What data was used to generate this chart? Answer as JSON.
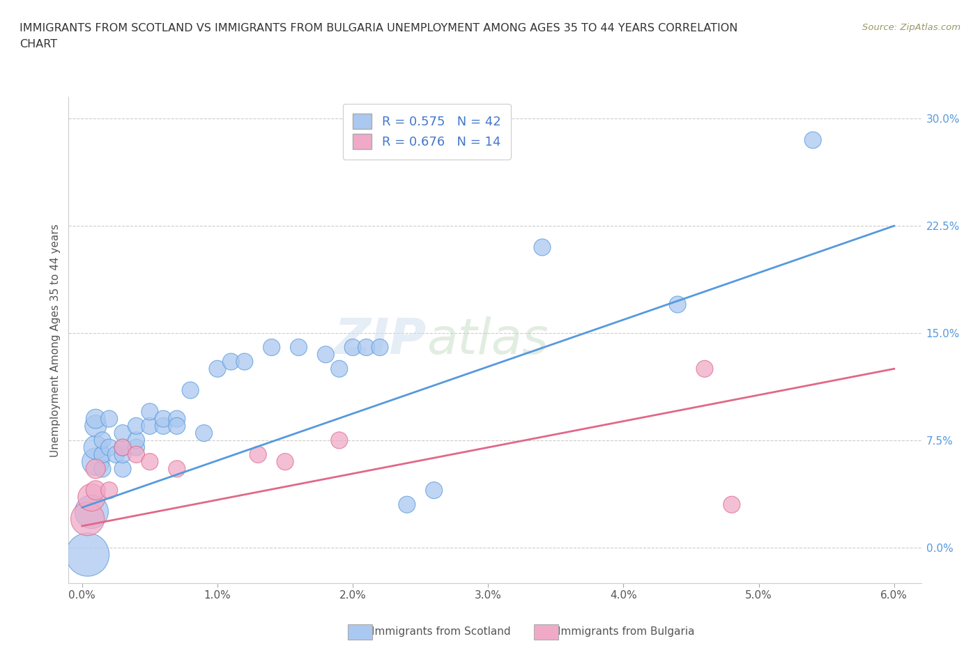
{
  "title_line1": "IMMIGRANTS FROM SCOTLAND VS IMMIGRANTS FROM BULGARIA UNEMPLOYMENT AMONG AGES 35 TO 44 YEARS CORRELATION",
  "title_line2": "CHART",
  "source": "Source: ZipAtlas.com",
  "ylabel": "Unemployment Among Ages 35 to 44 years",
  "xlim": [
    -0.001,
    0.062
  ],
  "ylim": [
    -0.025,
    0.315
  ],
  "x_ticks": [
    0.0,
    0.01,
    0.02,
    0.03,
    0.04,
    0.05,
    0.06
  ],
  "x_tick_labels": [
    "0.0%",
    "1.0%",
    "2.0%",
    "3.0%",
    "4.0%",
    "5.0%",
    "6.0%"
  ],
  "y_ticks": [
    0.0,
    0.075,
    0.15,
    0.225,
    0.3
  ],
  "y_tick_labels": [
    "0.0%",
    "7.5%",
    "15.0%",
    "22.5%",
    "30.0%"
  ],
  "scotland_color": "#aac8f0",
  "bulgaria_color": "#f0aac8",
  "scotland_line_color": "#5599dd",
  "bulgaria_line_color": "#e06888",
  "scotland_R": 0.575,
  "scotland_N": 42,
  "bulgaria_R": 0.676,
  "bulgaria_N": 14,
  "scotland_scatter_x": [
    0.0004,
    0.0007,
    0.001,
    0.001,
    0.001,
    0.001,
    0.0015,
    0.0015,
    0.0015,
    0.002,
    0.002,
    0.0025,
    0.003,
    0.003,
    0.003,
    0.003,
    0.004,
    0.004,
    0.004,
    0.005,
    0.005,
    0.006,
    0.006,
    0.007,
    0.007,
    0.008,
    0.009,
    0.01,
    0.011,
    0.012,
    0.014,
    0.016,
    0.018,
    0.019,
    0.02,
    0.021,
    0.022,
    0.024,
    0.026,
    0.034,
    0.044,
    0.054
  ],
  "scotland_scatter_y": [
    -0.005,
    0.025,
    0.06,
    0.07,
    0.085,
    0.09,
    0.055,
    0.065,
    0.075,
    0.07,
    0.09,
    0.065,
    0.055,
    0.065,
    0.07,
    0.08,
    0.07,
    0.075,
    0.085,
    0.085,
    0.095,
    0.085,
    0.09,
    0.09,
    0.085,
    0.11,
    0.08,
    0.125,
    0.13,
    0.13,
    0.14,
    0.14,
    0.135,
    0.125,
    0.14,
    0.14,
    0.14,
    0.03,
    0.04,
    0.21,
    0.17,
    0.285
  ],
  "scotland_scatter_size": [
    2000,
    1200,
    800,
    600,
    500,
    400,
    300,
    300,
    300,
    300,
    300,
    300,
    300,
    300,
    300,
    300,
    300,
    300,
    300,
    300,
    300,
    300,
    300,
    300,
    300,
    300,
    300,
    300,
    300,
    300,
    300,
    300,
    300,
    300,
    300,
    300,
    300,
    300,
    300,
    300,
    300,
    300
  ],
  "bulgaria_scatter_x": [
    0.0004,
    0.0007,
    0.001,
    0.001,
    0.002,
    0.003,
    0.004,
    0.005,
    0.007,
    0.013,
    0.015,
    0.019,
    0.046,
    0.048
  ],
  "bulgaria_scatter_y": [
    0.02,
    0.035,
    0.04,
    0.055,
    0.04,
    0.07,
    0.065,
    0.06,
    0.055,
    0.065,
    0.06,
    0.075,
    0.125,
    0.03
  ],
  "bulgaria_scatter_size": [
    1200,
    800,
    400,
    400,
    300,
    300,
    300,
    300,
    300,
    300,
    300,
    300,
    300,
    300
  ],
  "scotland_trend_x0": 0.0,
  "scotland_trend_y0": 0.028,
  "scotland_trend_x1": 0.06,
  "scotland_trend_y1": 0.225,
  "bulgaria_trend_x0": 0.0,
  "bulgaria_trend_y0": 0.015,
  "bulgaria_trend_x1": 0.06,
  "bulgaria_trend_y1": 0.125
}
